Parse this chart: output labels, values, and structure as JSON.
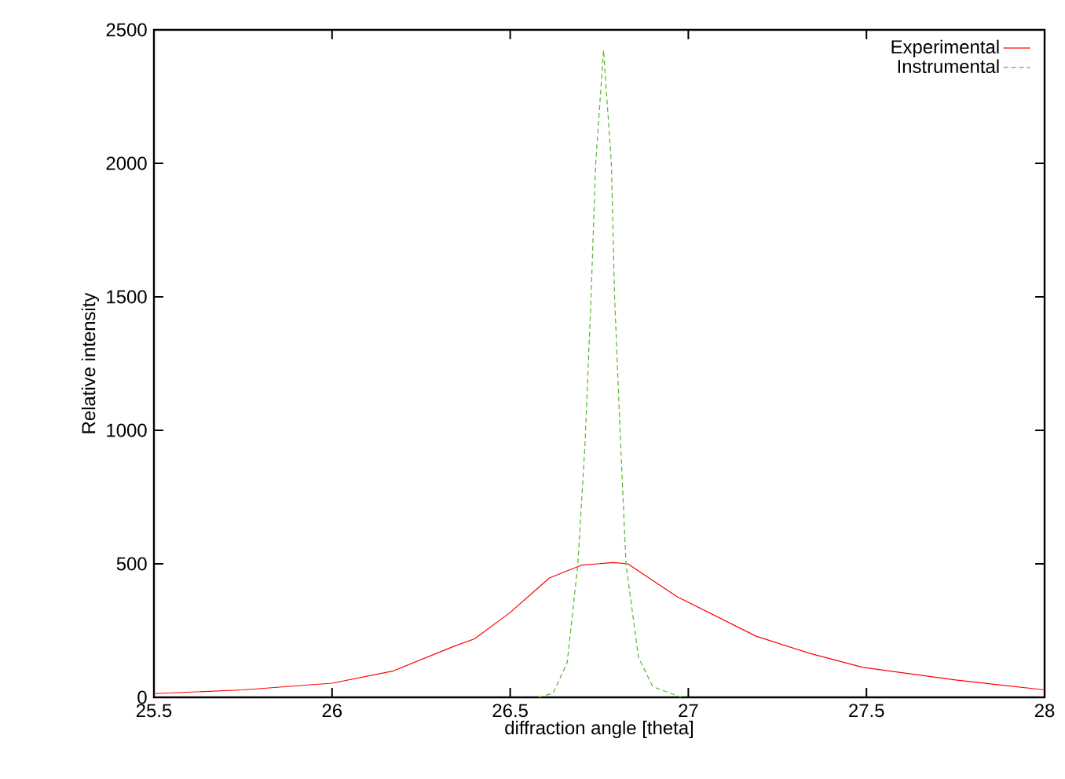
{
  "chart_data": {
    "type": "line",
    "xlabel": "diffraction angle [theta]",
    "ylabel": "Relative intensity",
    "xlim": [
      25.5,
      28
    ],
    "ylim": [
      0,
      2500
    ],
    "xticks": [
      25.5,
      26,
      26.5,
      27,
      27.5,
      28
    ],
    "yticks": [
      0,
      500,
      1000,
      1500,
      2000,
      2500
    ],
    "legend": "top right",
    "grid": false,
    "marker": "none",
    "series": [
      {
        "name": "Experimental",
        "color": "#ff0000",
        "line_style": "solid",
        "x": [
          25.5,
          25.75,
          26.0,
          26.17,
          26.34,
          26.4,
          26.5,
          26.61,
          26.7,
          26.79,
          26.83,
          26.97,
          27.19,
          27.34,
          27.49,
          27.75,
          28.0
        ],
        "values": [
          14,
          28,
          53,
          98,
          190,
          219,
          318,
          447,
          495,
          505,
          500,
          376,
          229,
          165,
          112,
          65,
          28
        ]
      },
      {
        "name": "Instrumental",
        "color": "#55b52a",
        "line_style": "dashed",
        "x": [
          26.58,
          26.62,
          26.66,
          26.69,
          26.71,
          26.727,
          26.74,
          26.762,
          26.784,
          26.793,
          26.81,
          26.825,
          26.86,
          26.9,
          26.98
        ],
        "values": [
          0,
          15,
          130,
          500,
          950,
          1500,
          2000,
          2424,
          2000,
          1500,
          950,
          500,
          150,
          40,
          0
        ]
      }
    ]
  }
}
